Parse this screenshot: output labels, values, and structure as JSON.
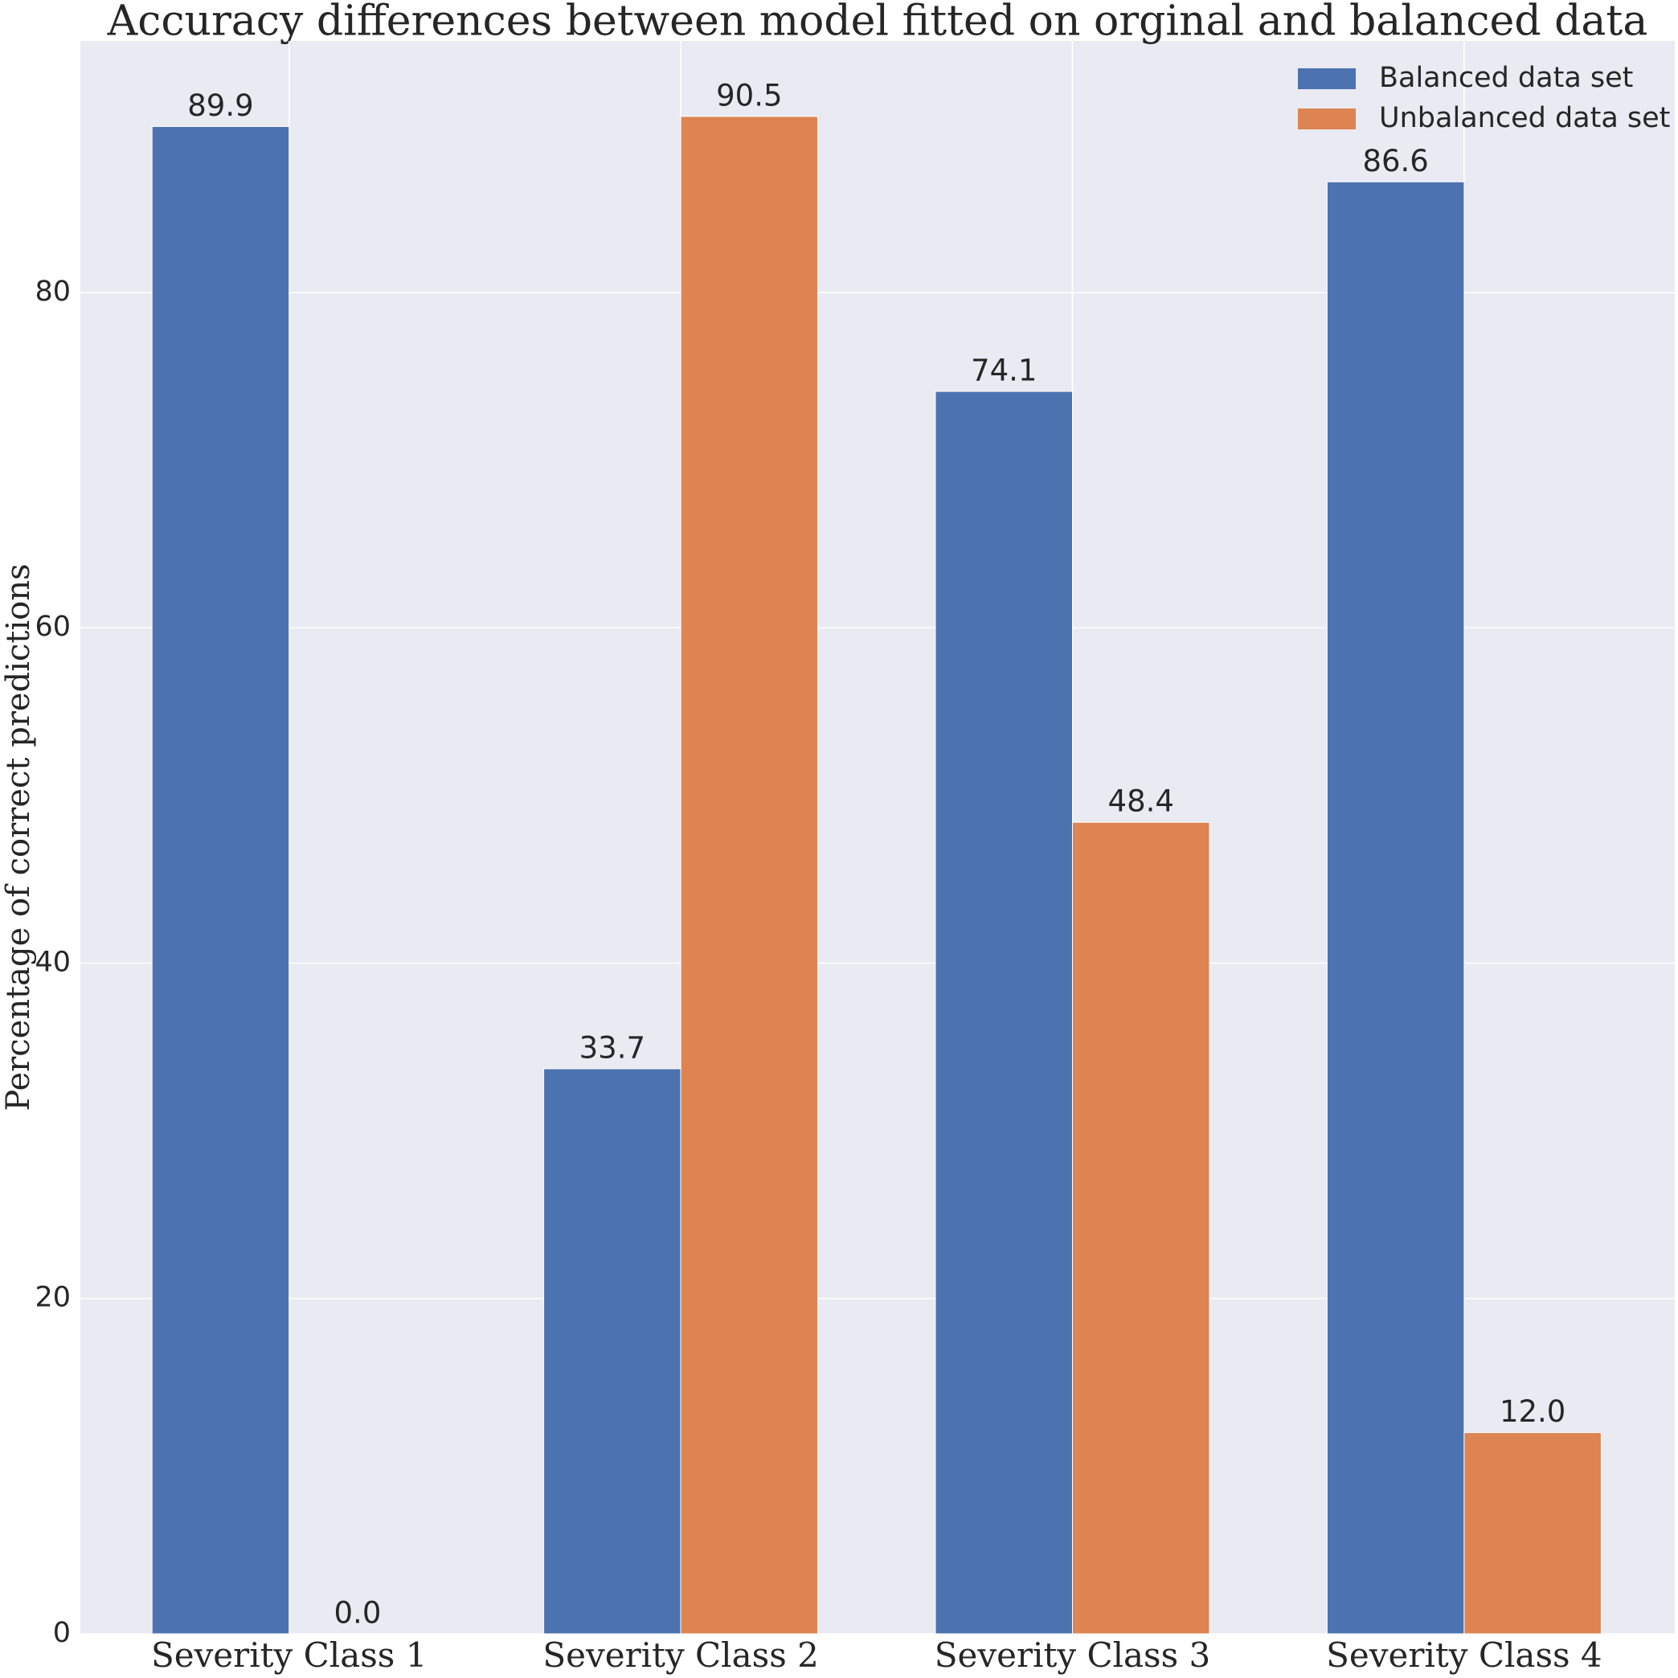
{
  "chart_data": {
    "type": "bar",
    "title": "Accuracy differences between model fitted on orginal and balanced data",
    "y_label": "Percentage of correct predictions",
    "categories": [
      "Severity Class 1",
      "Severity Class 2",
      "Severity Class 3",
      "Severity Class 4"
    ],
    "series": [
      {
        "name": "Balanced data set",
        "color": "#4c72b0",
        "values": [
          89.9,
          33.7,
          74.1,
          86.6
        ],
        "value_labels": [
          "89.9",
          "33.7",
          "74.1",
          "86.6"
        ]
      },
      {
        "name": "Unbalanced data set",
        "color": "#dd8452",
        "values": [
          0,
          90.5,
          48.4,
          12
        ],
        "value_labels": [
          "0.0",
          "90.5",
          "48.4",
          "12.0"
        ]
      }
    ],
    "ylim": [
      0,
      95
    ],
    "yticks": [
      0,
      20,
      40,
      60,
      80
    ],
    "grid": true,
    "legend": "upper right"
  }
}
